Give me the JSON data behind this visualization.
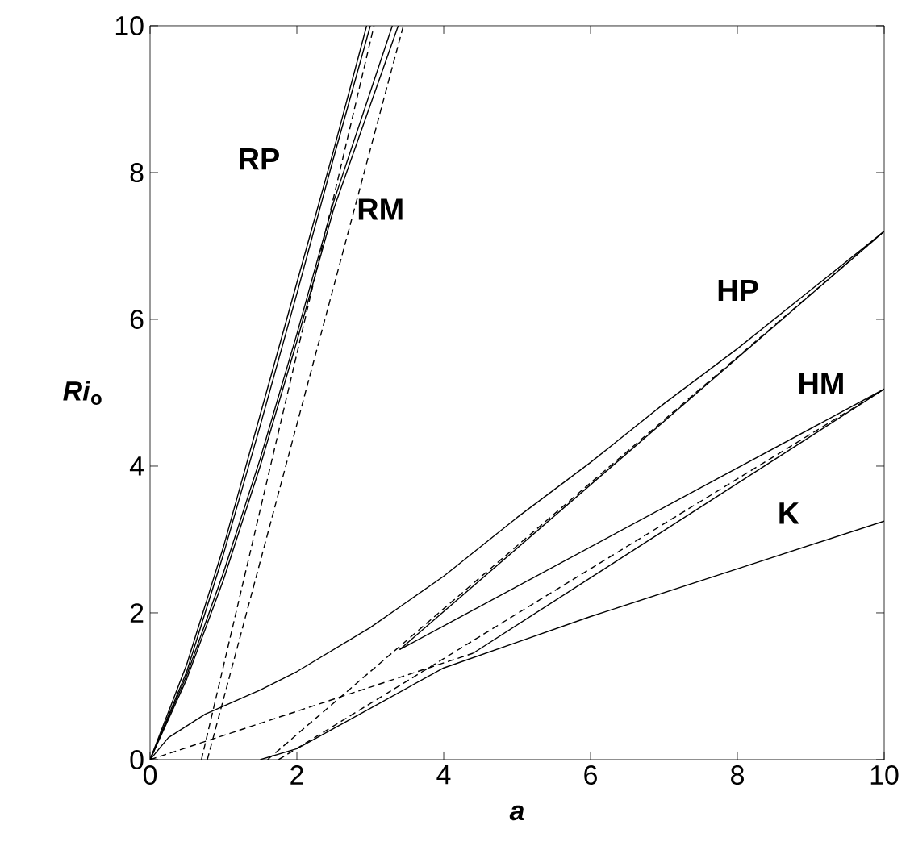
{
  "chart_data": {
    "type": "line",
    "xlabel": "*a*",
    "ylabel": "*Ri*$_{o}$",
    "xlim": [
      0,
      10
    ],
    "ylim": [
      0,
      10
    ],
    "xticks": [
      0,
      2,
      4,
      6,
      8,
      10
    ],
    "yticks": [
      0,
      2,
      4,
      6,
      8,
      10
    ],
    "grid": false,
    "marker": "none",
    "series": [
      {
        "name": "RP",
        "color": "#000000",
        "line_style": "solid",
        "x": [
          0,
          0.5,
          1,
          1.5,
          2,
          2.5,
          2.95
        ],
        "values": [
          0,
          1.3,
          2.9,
          4.7,
          6.5,
          8.3,
          10
        ]
      },
      {
        "color": "#000000",
        "line_style": "solid",
        "x": [
          0,
          0.5,
          1,
          1.5,
          2,
          2.5,
          3.0
        ],
        "values": [
          0,
          1.2,
          2.8,
          4.55,
          6.35,
          8.2,
          10
        ]
      },
      {
        "name": "RM",
        "color": "#000000",
        "line_style": "solid",
        "x": [
          0,
          0.5,
          1,
          1.5,
          2,
          2.5,
          3.3
        ],
        "values": [
          0,
          1.15,
          2.55,
          4.1,
          5.8,
          7.6,
          10
        ]
      },
      {
        "color": "#000000",
        "line_style": "solid",
        "x": [
          0,
          0.5,
          1,
          1.5,
          2,
          2.5,
          3.38
        ],
        "values": [
          0,
          1.1,
          2.45,
          4.0,
          5.7,
          7.5,
          10
        ]
      },
      {
        "color": "#000000",
        "line_style": "dashed",
        "x": [
          0.7,
          3.05
        ],
        "values": [
          0,
          10
        ]
      },
      {
        "color": "#000000",
        "line_style": "dashed",
        "x": [
          0.78,
          3.45
        ],
        "values": [
          0,
          10
        ]
      },
      {
        "name": "HP",
        "color": "#000000",
        "line_style": "solid",
        "x": [
          0,
          0.25,
          0.75,
          1.5,
          2,
          3,
          4,
          5,
          6,
          7,
          8,
          9,
          10
        ],
        "values": [
          0,
          0.3,
          0.62,
          0.95,
          1.2,
          1.8,
          2.5,
          3.3,
          4.05,
          4.85,
          5.6,
          6.4,
          7.2
        ]
      },
      {
        "color": "#000000",
        "line_style": "solid",
        "x": [
          3.4,
          10
        ],
        "values": [
          1.5,
          7.2
        ]
      },
      {
        "color": "#000000",
        "line_style": "dashed",
        "x": [
          1.6,
          10
        ],
        "values": [
          0,
          7.2
        ]
      },
      {
        "name": "HM",
        "color": "#000000",
        "line_style": "solid",
        "x": [
          3.4,
          10
        ],
        "values": [
          1.5,
          5.05
        ]
      },
      {
        "color": "#000000",
        "line_style": "solid",
        "x": [
          4.4,
          10
        ],
        "values": [
          1.45,
          5.05
        ]
      },
      {
        "color": "#000000",
        "line_style": "dashed",
        "x": [
          1.75,
          10
        ],
        "values": [
          0,
          5.05
        ]
      },
      {
        "color": "#000000",
        "line_style": "dashed",
        "x": [
          0,
          4.4
        ],
        "values": [
          0,
          1.45
        ]
      },
      {
        "name": "K",
        "color": "#000000",
        "line_style": "solid",
        "x": [
          1.5,
          2,
          3,
          4,
          5,
          6,
          8,
          10
        ],
        "values": [
          0,
          0.15,
          0.7,
          1.25,
          1.6,
          1.95,
          2.6,
          3.25
        ]
      }
    ]
  }
}
